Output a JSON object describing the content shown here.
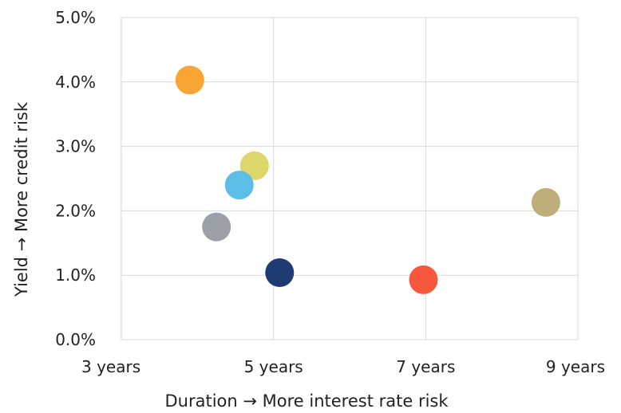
{
  "chart_data": {
    "type": "scatter",
    "title": "",
    "xlabel": "Duration → More interest rate risk",
    "ylabel": "Yield → More credit risk",
    "xlim": [
      3,
      9
    ],
    "ylim": [
      0,
      5
    ],
    "grid": true,
    "x_ticks": [
      {
        "value": 3,
        "label": "3 years"
      },
      {
        "value": 5,
        "label": "5 years"
      },
      {
        "value": 7,
        "label": "7 years"
      },
      {
        "value": 9,
        "label": "9 years"
      }
    ],
    "y_ticks": [
      {
        "value": 0,
        "label": "0.0%"
      },
      {
        "value": 1,
        "label": "1.0%"
      },
      {
        "value": 2,
        "label": "2.0%"
      },
      {
        "value": 3,
        "label": "3.0%"
      },
      {
        "value": 4,
        "label": "4.0%"
      },
      {
        "value": 5,
        "label": "5.0%"
      }
    ],
    "points": [
      {
        "x": 3.9,
        "y": 4.03,
        "color": "#f9a533"
      },
      {
        "x": 4.75,
        "y": 2.7,
        "color": "#dcd66b"
      },
      {
        "x": 4.55,
        "y": 2.4,
        "color": "#5cbde6"
      },
      {
        "x": 4.25,
        "y": 1.75,
        "color": "#9aa0a6"
      },
      {
        "x": 5.08,
        "y": 1.04,
        "color": "#1f3b73"
      },
      {
        "x": 6.97,
        "y": 0.93,
        "color": "#f7573d"
      },
      {
        "x": 8.58,
        "y": 2.13,
        "color": "#bfae7a"
      }
    ]
  }
}
